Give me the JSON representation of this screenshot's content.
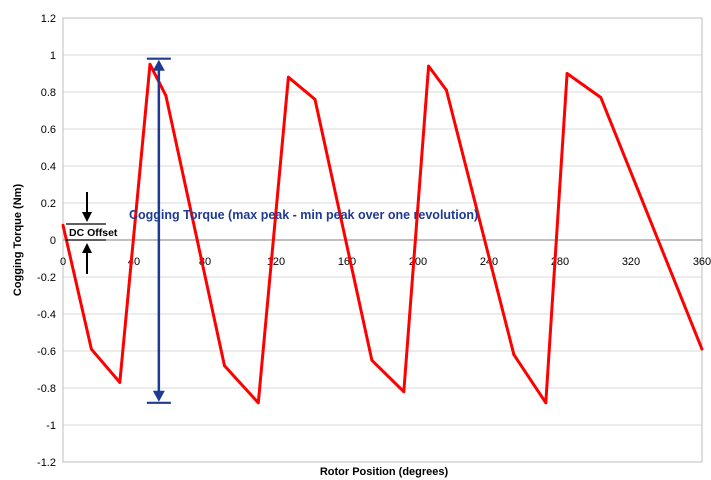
{
  "chart_data": {
    "type": "line",
    "xlabel": "Rotor Position (degrees)",
    "ylabel": "Cogging Torque (Nm)",
    "xlim": [
      0,
      360
    ],
    "ylim": [
      -1.2,
      1.2
    ],
    "x_ticks": [
      0,
      40,
      80,
      120,
      160,
      200,
      240,
      280,
      320,
      360
    ],
    "y_ticks": [
      -1.2,
      -1,
      -0.8,
      -0.6,
      -0.4,
      -0.2,
      0,
      0.2,
      0.4,
      0.6,
      0.8,
      1,
      1.2
    ],
    "x_tick_labels": [
      "0",
      "40",
      "80",
      "120",
      "160",
      "200",
      "240",
      "280",
      "320",
      "360"
    ],
    "y_tick_labels": [
      "-1.2",
      "-1",
      "-0.8",
      "-0.6",
      "-0.4",
      "-0.2",
      "0",
      "0.2",
      "0.4",
      "0.6",
      "0.8",
      "1",
      "1.2"
    ],
    "grid": true,
    "series": [
      {
        "color": "#ff0000",
        "x": [
          0,
          16,
          32,
          49,
          58,
          91,
          110,
          127,
          142,
          174,
          192,
          206,
          216,
          254,
          272,
          284,
          303,
          360
        ],
        "y": [
          0.08,
          -0.59,
          -0.77,
          0.95,
          0.78,
          -0.68,
          -0.88,
          0.88,
          0.76,
          -0.65,
          -0.82,
          0.94,
          0.81,
          -0.62,
          -0.88,
          0.9,
          0.77,
          -0.59
        ]
      }
    ],
    "annotations": {
      "peak_to_peak": {
        "text": "Cogging Torque (max peak - min peak over one revolution)",
        "from_y": 0.98,
        "to_y": -0.88,
        "x": 54,
        "color": "#1f3a93"
      },
      "dc_offset": {
        "text": "DC Offset",
        "color": "#000000"
      }
    }
  }
}
